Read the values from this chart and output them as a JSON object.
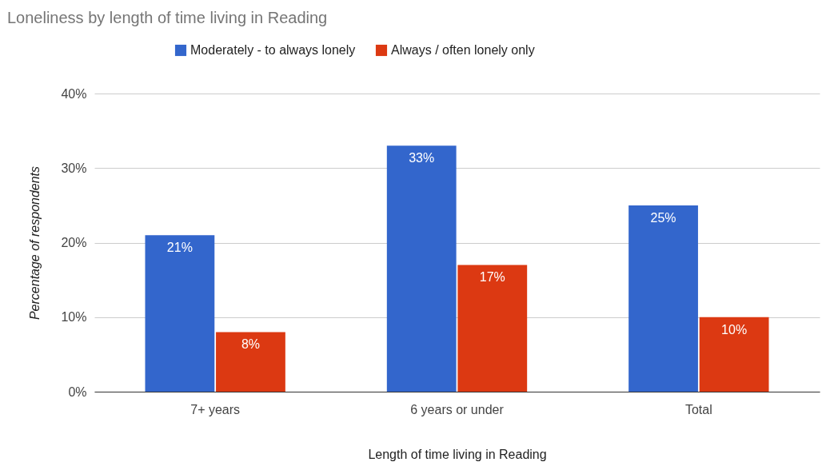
{
  "chart_data": {
    "type": "bar",
    "title": "Loneliness by length of time living in Reading",
    "xlabel": "Length of time living in Reading",
    "ylabel": "Percentage of respondents",
    "categories": [
      "7+ years",
      "6 years or under",
      "Total"
    ],
    "series": [
      {
        "name": "Moderately - to always lonely",
        "color": "#3366cc",
        "values": [
          21,
          33,
          25
        ],
        "value_labels": [
          "21%",
          "33%",
          "25%"
        ]
      },
      {
        "name": "Always / often lonely only",
        "color": "#dc3912",
        "values": [
          8,
          17,
          10
        ],
        "value_labels": [
          "8%",
          "17%",
          "10%"
        ]
      }
    ],
    "ylim": [
      0,
      40
    ],
    "yticks": [
      {
        "value": 0,
        "label": "0%"
      },
      {
        "value": 10,
        "label": "10%"
      },
      {
        "value": 20,
        "label": "20%"
      },
      {
        "value": 30,
        "label": "30%"
      },
      {
        "value": 40,
        "label": "40%"
      }
    ],
    "grid": "y",
    "legend": "top"
  }
}
